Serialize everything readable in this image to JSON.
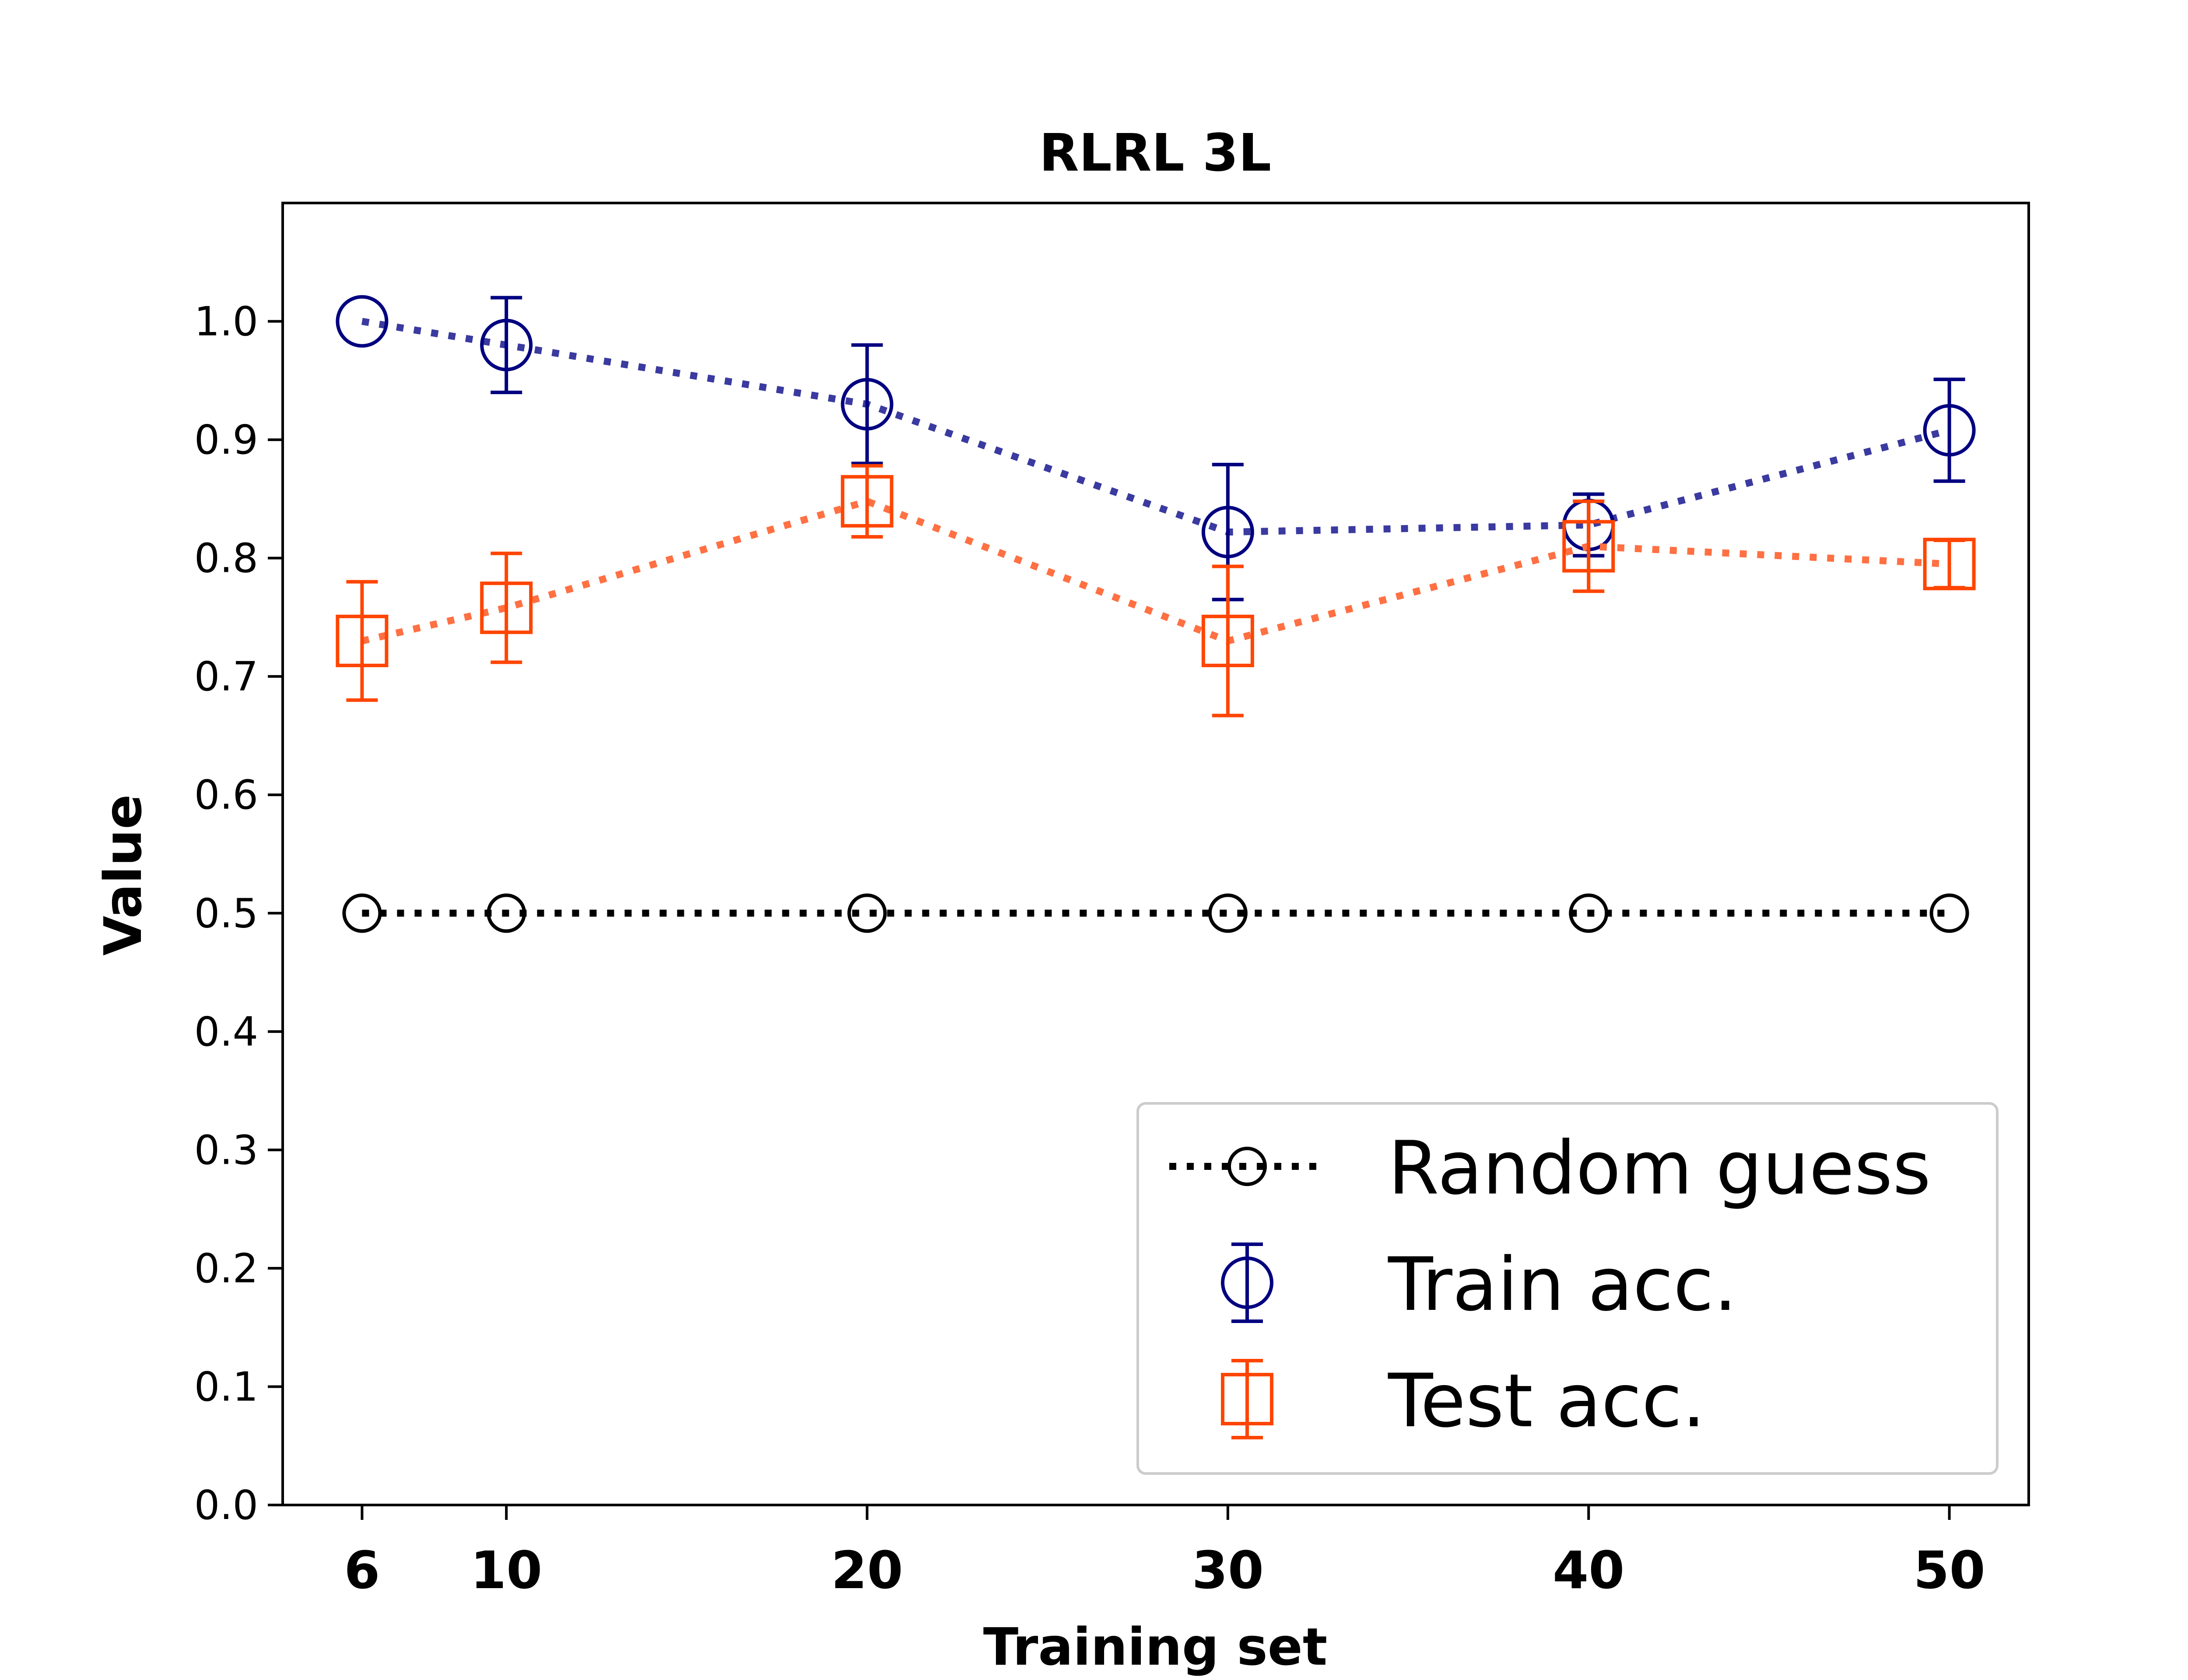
{
  "chart_data": {
    "type": "line",
    "title": "RLRL 3L",
    "xlabel": "Training set",
    "ylabel": "Value",
    "x": [
      6,
      10,
      20,
      30,
      40,
      50
    ],
    "x_tick_labels": [
      "6",
      "10",
      "20",
      "30",
      "40",
      "50"
    ],
    "xlim": [
      3.8,
      52.2
    ],
    "ylim": [
      0.0,
      1.1
    ],
    "y_ticks": [
      0.0,
      0.1,
      0.2,
      0.3,
      0.4,
      0.5,
      0.6,
      0.7,
      0.8,
      0.9,
      1.0
    ],
    "y_tick_labels": [
      "0.0",
      "0.1",
      "0.2",
      "0.3",
      "0.4",
      "0.5",
      "0.6",
      "0.7",
      "0.8",
      "0.9",
      "1.0"
    ],
    "grid": false,
    "legend_position": "lower-right",
    "series": [
      {
        "name": "Random guess",
        "values": [
          0.5,
          0.5,
          0.5,
          0.5,
          0.5,
          0.5
        ],
        "errors": null,
        "marker": "circle-small",
        "color": "#000000",
        "line_color": "#000000",
        "line_style": "dotted"
      },
      {
        "name": "Train acc.",
        "values": [
          1.0,
          0.98,
          0.93,
          0.822,
          0.828,
          0.908
        ],
        "errors": [
          0.0,
          0.04,
          0.05,
          0.057,
          0.026,
          0.043
        ],
        "marker": "circle",
        "color": "#000080",
        "line_color": "#3a3aa0",
        "line_style": "dotted"
      },
      {
        "name": "Test acc.",
        "values": [
          0.73,
          0.758,
          0.848,
          0.73,
          0.81,
          0.795
        ],
        "errors": [
          0.05,
          0.046,
          0.03,
          0.063,
          0.038,
          0.02
        ],
        "marker": "square",
        "color": "#ff4500",
        "line_color": "#ff7043",
        "line_style": "dotted"
      }
    ]
  }
}
